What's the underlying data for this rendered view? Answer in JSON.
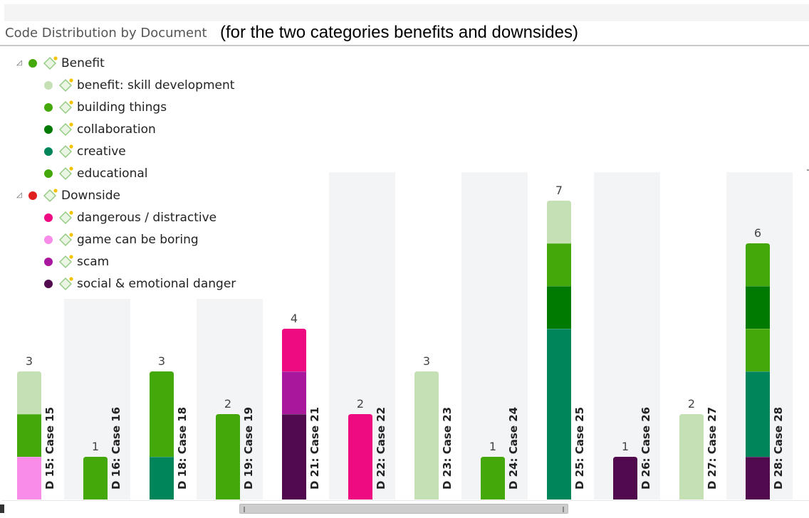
{
  "header": {
    "title": "Code Distribution by Document",
    "note": "(for the two categories benefits and downsides)"
  },
  "legend": {
    "items": [
      {
        "label": "Benefit",
        "color": "#44a80a",
        "level": 0,
        "icon": "code-group-icon"
      },
      {
        "label": "benefit: skill development",
        "color": "#c6e0b5",
        "level": 1,
        "icon": "code-icon"
      },
      {
        "label": "building things",
        "color": "#44a80a",
        "level": 1,
        "icon": "code-icon"
      },
      {
        "label": "collaboration",
        "color": "#007a00",
        "level": 1,
        "icon": "code-icon"
      },
      {
        "label": "creative",
        "color": "#00855a",
        "level": 1,
        "icon": "code-icon"
      },
      {
        "label": "educational",
        "color": "#44a80a",
        "level": 1,
        "icon": "code-icon"
      },
      {
        "label": "Downside",
        "color": "#e01f1f",
        "level": 0,
        "icon": "code-group-icon"
      },
      {
        "label": "dangerous / distractive",
        "color": "#ee0a80",
        "level": 1,
        "icon": "code-icon"
      },
      {
        "label": "game can be boring",
        "color": "#f98ce8",
        "level": 1,
        "icon": "code-icon"
      },
      {
        "label": "scam",
        "color": "#a8179c",
        "level": 1,
        "icon": "code-icon"
      },
      {
        "label": "social & emotional danger",
        "color": "#520a4e",
        "level": 1,
        "icon": "code-icon"
      }
    ]
  },
  "chart_data": {
    "type": "bar",
    "stacked": true,
    "title": "Code Distribution by Document",
    "xlabel": "",
    "ylabel": "",
    "ylim": [
      0,
      7
    ],
    "categories": [
      "D 15: Case 15",
      "D 16: Case 16",
      "D 18: Case 18",
      "D 19: Case 19",
      "D 21: Case 21",
      "D 22: Case 22",
      "D 23: Case 23",
      "D 24: Case 24",
      "D 25: Case 25",
      "D 26: Case 26",
      "D 27: Case 27",
      "D 28: Case 28"
    ],
    "totals": [
      "3",
      "1",
      "3",
      "2",
      "4",
      "2",
      "3",
      "1",
      "7",
      "1",
      "2",
      "6"
    ],
    "series": [
      {
        "name": "game can be boring",
        "color": "#f98ce8",
        "values": [
          1,
          0,
          0,
          0,
          0,
          0,
          0,
          0,
          0,
          0,
          0,
          0
        ]
      },
      {
        "name": "social & emotional danger",
        "color": "#520a4e",
        "values": [
          0,
          0,
          0,
          0,
          2,
          0,
          0,
          0,
          0,
          1,
          0,
          1
        ]
      },
      {
        "name": "creative",
        "color": "#00855a",
        "values": [
          0,
          0,
          1,
          0,
          0,
          0,
          0,
          0,
          4,
          0,
          0,
          2
        ]
      },
      {
        "name": "building things",
        "color": "#44a80a",
        "values": [
          1,
          1,
          2,
          2,
          0,
          0,
          0,
          1,
          0,
          0,
          0,
          1
        ]
      },
      {
        "name": "scam",
        "color": "#a8179c",
        "values": [
          0,
          0,
          0,
          0,
          1,
          0,
          0,
          0,
          0,
          0,
          0,
          0
        ]
      },
      {
        "name": "dangerous / distractive",
        "color": "#ee0a80",
        "values": [
          0,
          0,
          0,
          0,
          1,
          2,
          0,
          0,
          0,
          0,
          0,
          0
        ]
      },
      {
        "name": "collaboration",
        "color": "#007a00",
        "values": [
          0,
          0,
          0,
          0,
          0,
          0,
          0,
          0,
          1,
          0,
          0,
          1
        ]
      },
      {
        "name": "educational",
        "color": "#44a80a",
        "values": [
          0,
          0,
          0,
          0,
          0,
          0,
          0,
          0,
          1,
          0,
          0,
          1
        ]
      },
      {
        "name": "benefit: skill development",
        "color": "#c6e0b5",
        "values": [
          1,
          0,
          0,
          0,
          0,
          0,
          3,
          0,
          1,
          0,
          2,
          0
        ]
      }
    ]
  }
}
